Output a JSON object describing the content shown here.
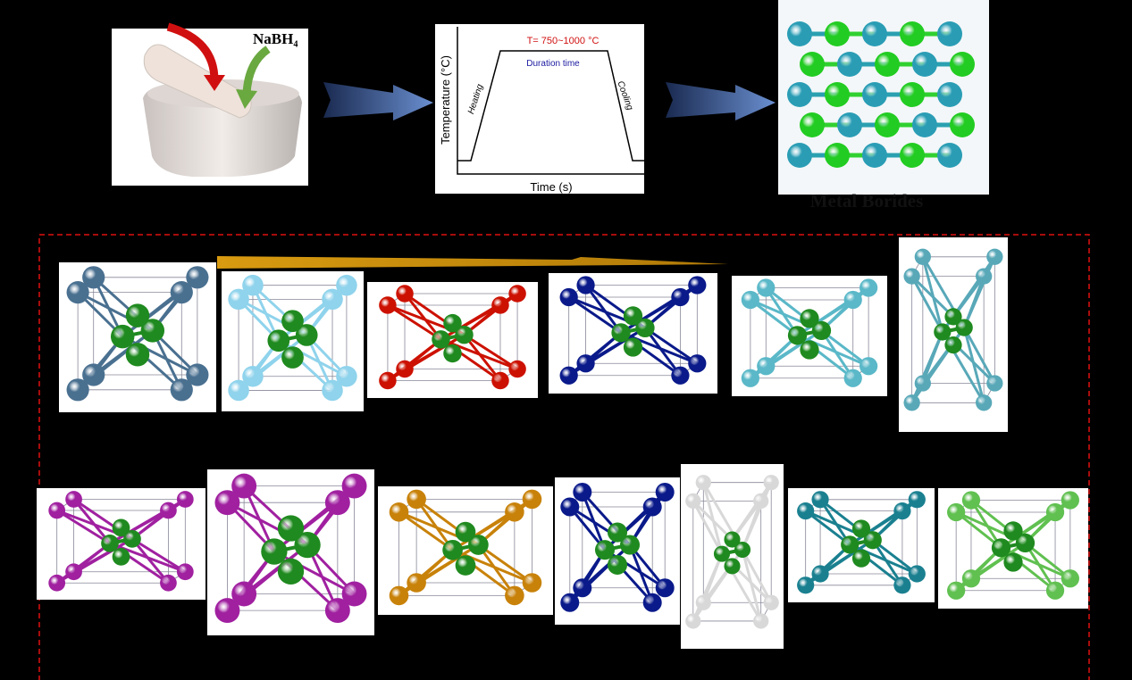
{
  "mortar": {
    "reagent": "NaBH₄"
  },
  "profile": {
    "y_axis": "Temperature (°C)",
    "x_axis": "Time (s)",
    "temperature": "T= 750~1000 °C",
    "hold": "Duration time",
    "heating": "Heating",
    "cooling": "Cooling"
  },
  "product": {
    "label": "Metal Borides"
  }
}
